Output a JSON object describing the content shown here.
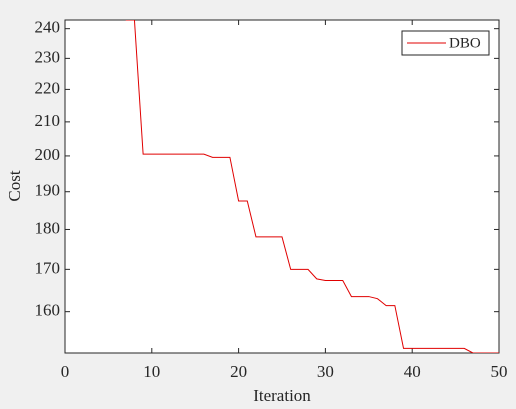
{
  "chart_data": {
    "type": "line",
    "xlabel": "Iteration",
    "ylabel": "Cost",
    "x": [
      7,
      8,
      9,
      10,
      11,
      12,
      13,
      14,
      15,
      16,
      17,
      18,
      19,
      20,
      21,
      22,
      23,
      24,
      25,
      26,
      27,
      28,
      29,
      30,
      31,
      32,
      33,
      34,
      35,
      36,
      37,
      38,
      39,
      40,
      41,
      42,
      43,
      44,
      45,
      46,
      47,
      48,
      49,
      50
    ],
    "series": [
      {
        "name": "DBO",
        "color": "#e00000",
        "values": [
          243,
          243,
          200.5,
          200.5,
          200.5,
          200.5,
          200.5,
          200.5,
          200.5,
          200.5,
          199.6,
          199.6,
          199.6,
          187.5,
          187.5,
          178.1,
          178.1,
          178.1,
          178.1,
          170,
          170,
          170,
          167.7,
          167.3,
          167.3,
          167.3,
          163.5,
          163.5,
          163.5,
          163,
          161.4,
          161.4,
          151.8,
          151.8,
          151.8,
          151.8,
          151.8,
          151.8,
          151.8,
          151.8,
          150.8,
          150.8,
          150.8,
          150.8
        ]
      }
    ],
    "xlim": [
      0,
      50
    ],
    "xticks": [
      0,
      10,
      20,
      30,
      40,
      50
    ],
    "ylim": [
      150.8,
      243
    ],
    "yticks": [
      160,
      170,
      180,
      190,
      200,
      210,
      220,
      230,
      240
    ],
    "yscale": "log",
    "legend": "upper right"
  }
}
